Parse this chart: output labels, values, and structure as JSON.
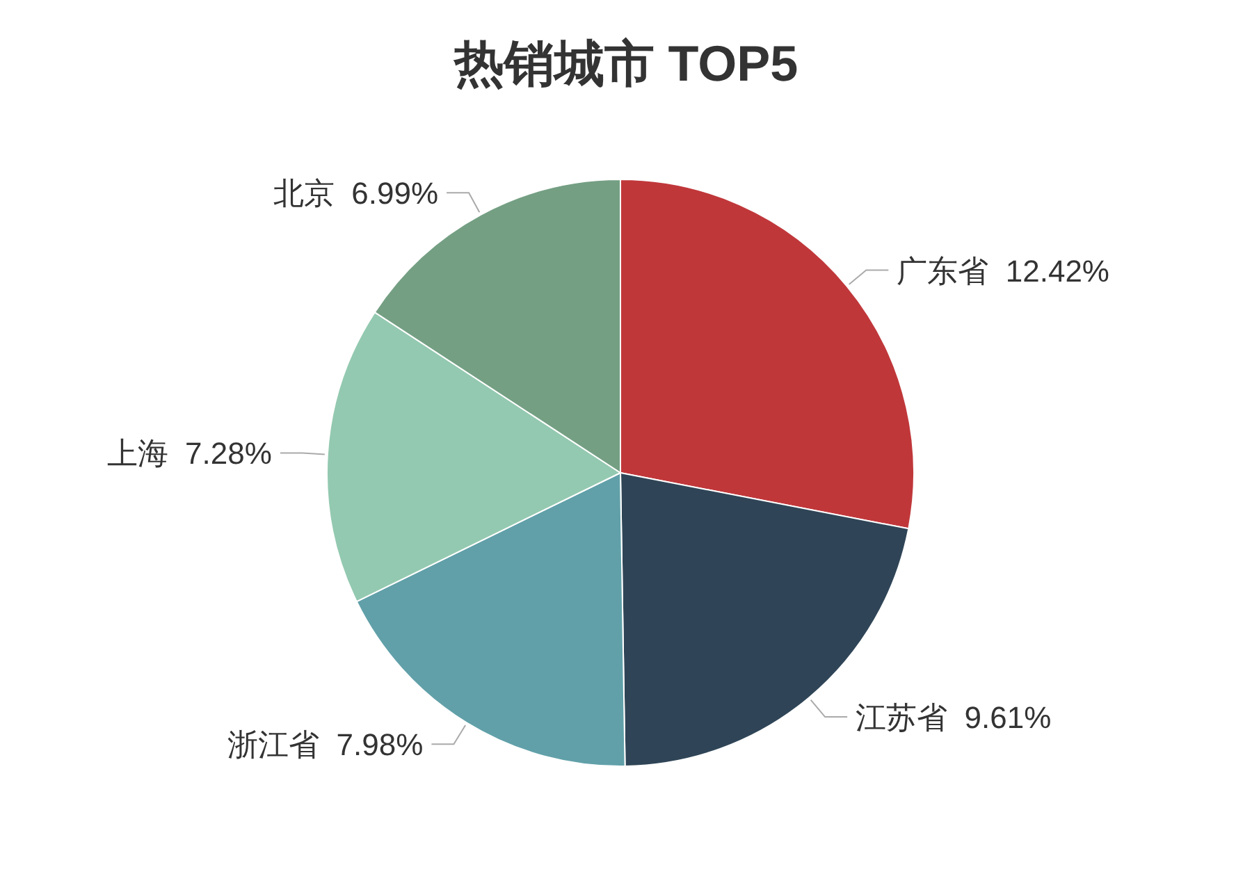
{
  "chart_data": {
    "type": "pie",
    "title": "热销城市 TOP5",
    "categories": [
      "广东省",
      "江苏省",
      "浙江省",
      "上海",
      "北京"
    ],
    "values": [
      12.42,
      9.61,
      7.98,
      7.28,
      6.99
    ],
    "value_labels": [
      "12.42%",
      "9.61%",
      "7.98%",
      "7.28%",
      "6.99%"
    ],
    "colors": [
      "#c0373a",
      "#2f4557",
      "#61a0a9",
      "#93c9b0",
      "#749f83"
    ]
  }
}
